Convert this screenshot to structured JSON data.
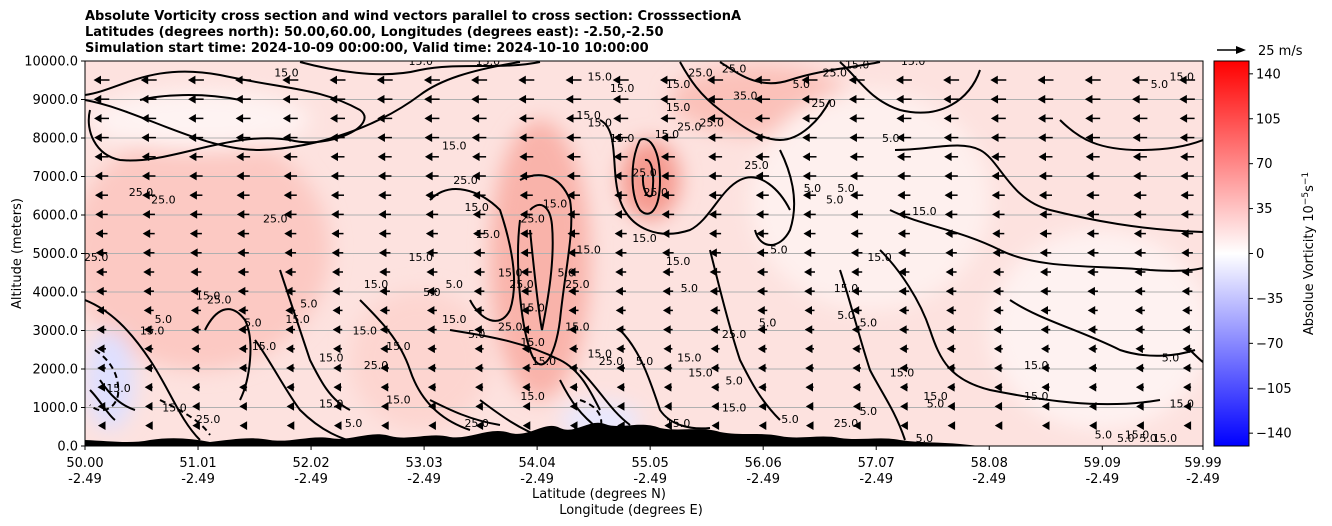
{
  "chart_data": {
    "type": "heatmap",
    "title_lines": [
      "Absolute Vorticity cross section and wind vectors parallel to cross section: CrosssectionA",
      "Latitudes (degrees north): 50.00,60.00, Longitudes (degrees east): -2.50,-2.50",
      "Simulation start time: 2024-10-09 00:00:00, Valid time: 2024-10-10 10:00:00"
    ],
    "xlabel": "Latitude (degrees N)",
    "xlabel2": "Longitude (degrees E)",
    "ylabel": "Altitude (meters)",
    "xlim": [
      50.0,
      59.99
    ],
    "ylim": [
      0,
      10000
    ],
    "grid": "horizontal",
    "x_ticks": [
      {
        "lat": "50.00",
        "lon": "-2.49",
        "v": 50.0
      },
      {
        "lat": "51.01",
        "lon": "-2.49",
        "v": 51.01
      },
      {
        "lat": "52.02",
        "lon": "-2.49",
        "v": 52.02
      },
      {
        "lat": "53.03",
        "lon": "-2.49",
        "v": 53.03
      },
      {
        "lat": "54.04",
        "lon": "-2.49",
        "v": 54.04
      },
      {
        "lat": "55.05",
        "lon": "-2.49",
        "v": 55.05
      },
      {
        "lat": "56.06",
        "lon": "-2.49",
        "v": 56.06
      },
      {
        "lat": "57.07",
        "lon": "-2.49",
        "v": 57.07
      },
      {
        "lat": "58.08",
        "lon": "-2.49",
        "v": 58.08
      },
      {
        "lat": "59.09",
        "lon": "-2.49",
        "v": 59.09
      },
      {
        "lat": "59.99",
        "lon": "-2.49",
        "v": 59.99
      }
    ],
    "y_ticks": [
      {
        "label": "0.0",
        "v": 0
      },
      {
        "label": "1000.0",
        "v": 1000
      },
      {
        "label": "2000.0",
        "v": 2000
      },
      {
        "label": "3000.0",
        "v": 3000
      },
      {
        "label": "4000.0",
        "v": 4000
      },
      {
        "label": "5000.0",
        "v": 5000
      },
      {
        "label": "6000.0",
        "v": 6000
      },
      {
        "label": "7000.0",
        "v": 7000
      },
      {
        "label": "8000.0",
        "v": 8000
      },
      {
        "label": "9000.0",
        "v": 9000
      },
      {
        "label": "10000.0",
        "v": 10000
      }
    ],
    "colorbar": {
      "label": "Absolue Vorticity 10",
      "label_exp": "−5",
      "label_unit": "s",
      "label_unit_exp": "−1",
      "range": [
        -150,
        150
      ],
      "colors": [
        "#0000ff",
        "#ffffff",
        "#ff0000"
      ],
      "ticks": [
        {
          "label": "140",
          "v": 140
        },
        {
          "label": "105",
          "v": 105
        },
        {
          "label": "70",
          "v": 70
        },
        {
          "label": "35",
          "v": 35
        },
        {
          "label": "0",
          "v": 0
        },
        {
          "label": "−35",
          "v": -35
        },
        {
          "label": "−70",
          "v": -70
        },
        {
          "label": "−105",
          "v": -105
        },
        {
          "label": "−140",
          "v": -140
        }
      ]
    },
    "quiver_key": {
      "label": "25 m/s"
    },
    "vector_direction": "left (toward lower latitude)",
    "contour_labels": [
      {
        "t": "15.0",
        "x": 50.3,
        "y": 1400
      },
      {
        "t": "15.0",
        "x": 50.6,
        "y": 2900
      },
      {
        "t": "5.0",
        "x": 50.7,
        "y": 3200
      },
      {
        "t": "25.0",
        "x": 50.1,
        "y": 4800
      },
      {
        "t": "25.0",
        "x": 50.5,
        "y": 6500
      },
      {
        "t": "25.0",
        "x": 50.7,
        "y": 6300
      },
      {
        "t": "15.0",
        "x": 51.8,
        "y": 9600
      },
      {
        "t": "25.0",
        "x": 51.7,
        "y": 5800
      },
      {
        "t": "15.0",
        "x": 51.1,
        "y": 3800
      },
      {
        "t": "25.0",
        "x": 51.2,
        "y": 3700
      },
      {
        "t": "5.0",
        "x": 51.5,
        "y": 3100
      },
      {
        "t": "15.0",
        "x": 51.6,
        "y": 2500
      },
      {
        "t": "15.0",
        "x": 51.9,
        "y": 3200
      },
      {
        "t": "5.0",
        "x": 52.0,
        "y": 3600
      },
      {
        "t": "15.0",
        "x": 52.2,
        "y": 2200
      },
      {
        "t": "15.0",
        "x": 52.2,
        "y": 1000
      },
      {
        "t": "15.0",
        "x": 50.8,
        "y": 900
      },
      {
        "t": "25.0",
        "x": 51.1,
        "y": 600
      },
      {
        "t": "15.0",
        "x": 52.6,
        "y": 4100
      },
      {
        "t": "15.0",
        "x": 52.5,
        "y": 2900
      },
      {
        "t": "25.0",
        "x": 52.6,
        "y": 2000
      },
      {
        "t": "15.0",
        "x": 52.8,
        "y": 2500
      },
      {
        "t": "15.0",
        "x": 53.0,
        "y": 4800
      },
      {
        "t": "5.0",
        "x": 53.1,
        "y": 3900
      },
      {
        "t": "5.0",
        "x": 53.3,
        "y": 4100
      },
      {
        "t": "15.0",
        "x": 53.3,
        "y": 3200
      },
      {
        "t": "5.0",
        "x": 53.5,
        "y": 2800
      },
      {
        "t": "15.0",
        "x": 53.0,
        "y": 9900
      },
      {
        "t": "15.0",
        "x": 53.6,
        "y": 9900
      },
      {
        "t": "15.0",
        "x": 53.3,
        "y": 7700
      },
      {
        "t": "25.0",
        "x": 53.4,
        "y": 6800
      },
      {
        "t": "15.0",
        "x": 53.5,
        "y": 6100
      },
      {
        "t": "15.0",
        "x": 53.6,
        "y": 5400
      },
      {
        "t": "15.0",
        "x": 53.8,
        "y": 4400
      },
      {
        "t": "25.0",
        "x": 53.9,
        "y": 4100
      },
      {
        "t": "15.0",
        "x": 54.0,
        "y": 3500
      },
      {
        "t": "25.0",
        "x": 53.8,
        "y": 3000
      },
      {
        "t": "15.0",
        "x": 54.0,
        "y": 2600
      },
      {
        "t": "15.0",
        "x": 54.1,
        "y": 2100
      },
      {
        "t": "15.0",
        "x": 54.0,
        "y": 1200
      },
      {
        "t": "25.0",
        "x": 54.0,
        "y": 5800
      },
      {
        "t": "15.0",
        "x": 54.2,
        "y": 6200
      },
      {
        "t": "5.0",
        "x": 54.3,
        "y": 4400
      },
      {
        "t": "25.0",
        "x": 54.4,
        "y": 4100
      },
      {
        "t": "15.0",
        "x": 54.4,
        "y": 3000
      },
      {
        "t": "15.0",
        "x": 54.5,
        "y": 5000
      },
      {
        "t": "15.0",
        "x": 54.6,
        "y": 2300
      },
      {
        "t": "25.0",
        "x": 54.7,
        "y": 2100
      },
      {
        "t": "15.0",
        "x": 54.5,
        "y": 8500
      },
      {
        "t": "15.0",
        "x": 54.6,
        "y": 8300
      },
      {
        "t": "15.0",
        "x": 54.8,
        "y": 7900
      },
      {
        "t": "25.0",
        "x": 55.0,
        "y": 7000
      },
      {
        "t": "25.0",
        "x": 55.1,
        "y": 6500
      },
      {
        "t": "15.0",
        "x": 54.6,
        "y": 9500
      },
      {
        "t": "15.0",
        "x": 54.8,
        "y": 9200
      },
      {
        "t": "15.0",
        "x": 55.2,
        "y": 8000
      },
      {
        "t": "15.0",
        "x": 55.3,
        "y": 8700
      },
      {
        "t": "15.0",
        "x": 55.3,
        "y": 9300
      },
      {
        "t": "25.0",
        "x": 55.5,
        "y": 9600
      },
      {
        "t": "15.0",
        "x": 55.0,
        "y": 5300
      },
      {
        "t": "15.0",
        "x": 55.3,
        "y": 4700
      },
      {
        "t": "5.0",
        "x": 55.4,
        "y": 4000
      },
      {
        "t": "25.0",
        "x": 55.4,
        "y": 8200
      },
      {
        "t": "25.0",
        "x": 55.6,
        "y": 8300
      },
      {
        "t": "25.0",
        "x": 55.8,
        "y": 9700
      },
      {
        "t": "35.0",
        "x": 55.9,
        "y": 9000
      },
      {
        "t": "25.0",
        "x": 56.0,
        "y": 7200
      },
      {
        "t": "5.0",
        "x": 56.4,
        "y": 9300
      },
      {
        "t": "25.0",
        "x": 56.6,
        "y": 8800
      },
      {
        "t": "25.0",
        "x": 56.7,
        "y": 9600
      },
      {
        "t": "15.0",
        "x": 56.9,
        "y": 9800
      },
      {
        "t": "5.0",
        "x": 56.5,
        "y": 6600
      },
      {
        "t": "5.0",
        "x": 56.7,
        "y": 6300
      },
      {
        "t": "5.0",
        "x": 56.8,
        "y": 6600
      },
      {
        "t": "5.0",
        "x": 57.2,
        "y": 7900
      },
      {
        "t": "15.0",
        "x": 57.4,
        "y": 9900
      },
      {
        "t": "15.0",
        "x": 57.5,
        "y": 6000
      },
      {
        "t": "15.0",
        "x": 56.8,
        "y": 4000
      },
      {
        "t": "5.0",
        "x": 56.8,
        "y": 3300
      },
      {
        "t": "5.0",
        "x": 57.0,
        "y": 3100
      },
      {
        "t": "15.0",
        "x": 57.1,
        "y": 4800
      },
      {
        "t": "5.0",
        "x": 56.2,
        "y": 5000
      },
      {
        "t": "5.0",
        "x": 56.1,
        "y": 3100
      },
      {
        "t": "25.0",
        "x": 55.8,
        "y": 2800
      },
      {
        "t": "15.0",
        "x": 55.5,
        "y": 1800
      },
      {
        "t": "5.0",
        "x": 55.8,
        "y": 1600
      },
      {
        "t": "15.0",
        "x": 55.8,
        "y": 900
      },
      {
        "t": "5.0",
        "x": 56.3,
        "y": 600
      },
      {
        "t": "5.0",
        "x": 57.0,
        "y": 800
      },
      {
        "t": "15.0",
        "x": 57.3,
        "y": 1800
      },
      {
        "t": "15.0",
        "x": 57.6,
        "y": 1200
      },
      {
        "t": "5.0",
        "x": 57.6,
        "y": 1000
      },
      {
        "t": "25.0",
        "x": 56.8,
        "y": 500
      },
      {
        "t": "5.0",
        "x": 57.5,
        "y": 100
      },
      {
        "t": "15.0",
        "x": 58.5,
        "y": 1200
      },
      {
        "t": "15.0",
        "x": 58.5,
        "y": 2000
      },
      {
        "t": "5.0",
        "x": 59.7,
        "y": 2200
      },
      {
        "t": "5.0",
        "x": 59.6,
        "y": 9300
      },
      {
        "t": "15.0",
        "x": 59.8,
        "y": 9500
      },
      {
        "t": "15.0",
        "x": 59.8,
        "y": 1000
      },
      {
        "t": "5.0",
        "x": 59.1,
        "y": 200
      },
      {
        "t": "5.0",
        "x": 59.3,
        "y": 100
      },
      {
        "t": "5.0",
        "x": 59.5,
        "y": 100
      },
      {
        "t": "15.0",
        "x": 59.65,
        "y": 100
      },
      {
        "t": "15.0",
        "x": 59.4,
        "y": 200
      },
      {
        "t": "15.0",
        "x": 55.3,
        "y": 500
      },
      {
        "t": "25.0",
        "x": 53.5,
        "y": 500
      },
      {
        "t": "5.0",
        "x": 55.0,
        "y": 2100
      },
      {
        "t": "15.0",
        "x": 55.4,
        "y": 2200
      },
      {
        "t": "5.0",
        "x": 52.4,
        "y": 500
      },
      {
        "t": "15.0",
        "x": 52.8,
        "y": 1100
      }
    ]
  }
}
